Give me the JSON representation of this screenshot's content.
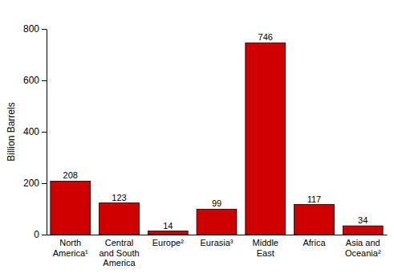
{
  "chart_data": {
    "type": "bar",
    "y_label": "Billion Barrels",
    "categories": [
      "North America¹",
      "Central and South America",
      "Europe²",
      "Eurasia³",
      "Middle East",
      "Africa",
      "Asia and Oceania²"
    ],
    "values": [
      208,
      123,
      14,
      99,
      746,
      117,
      34
    ],
    "color": "#d00000",
    "ylim": [
      0,
      800
    ],
    "yticks": [
      0,
      200,
      400,
      600,
      800
    ],
    "grid": false,
    "data_labels": true
  }
}
